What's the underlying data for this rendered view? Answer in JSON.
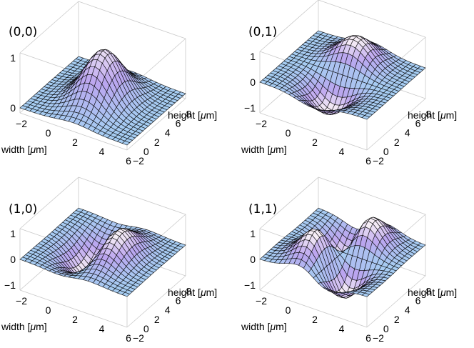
{
  "chart_data": [
    {
      "type": "surface3d",
      "mode": [
        0,
        0
      ],
      "title": "(0,0)",
      "xlabel_prefix": "width [",
      "xlabel_unit": "μ",
      "xlabel_suffix": "m]",
      "ylabel_prefix": "height [",
      "ylabel_unit": "μ",
      "ylabel_suffix": "m]",
      "x_ticks": [
        "−2",
        "0",
        "2",
        "4",
        "6"
      ],
      "y_ticks": [
        "−2",
        "0",
        "2",
        "4",
        "6",
        "8"
      ],
      "z_ticks": [
        "0",
        "1"
      ],
      "x_tick_values": [
        -2,
        0,
        2,
        4,
        6
      ],
      "y_tick_values": [
        -2,
        0,
        2,
        4,
        6,
        8
      ],
      "z_tick_values": [
        0,
        1
      ],
      "xlim": [
        -2,
        6
      ],
      "ylim": [
        -2,
        9
      ],
      "zlim": [
        -0.1,
        1.1
      ],
      "center": [
        2,
        3.5
      ],
      "width": [
        1.2,
        2.4
      ]
    },
    {
      "type": "surface3d",
      "mode": [
        0,
        1
      ],
      "title": "(0,1)",
      "xlabel_prefix": "width [",
      "xlabel_unit": "μ",
      "xlabel_suffix": "m]",
      "ylabel_prefix": "height [",
      "ylabel_unit": "μ",
      "ylabel_suffix": "m]",
      "x_ticks": [
        "−2",
        "0",
        "2",
        "4",
        "6"
      ],
      "y_ticks": [
        "−2",
        "0",
        "2",
        "4",
        "6",
        "8"
      ],
      "z_ticks": [
        "−1",
        "0",
        "1"
      ],
      "x_tick_values": [
        -2,
        0,
        2,
        4,
        6
      ],
      "y_tick_values": [
        -2,
        0,
        2,
        4,
        6,
        8
      ],
      "z_tick_values": [
        -1,
        0,
        1
      ],
      "xlim": [
        -2,
        6
      ],
      "ylim": [
        -2,
        9
      ],
      "zlim": [
        -1.2,
        1.2
      ],
      "center": [
        2,
        3.5
      ],
      "width": [
        1.2,
        2.4
      ]
    },
    {
      "type": "surface3d",
      "mode": [
        1,
        0
      ],
      "title": "(1,0)",
      "xlabel_prefix": "width [",
      "xlabel_unit": "μ",
      "xlabel_suffix": "m]",
      "ylabel_prefix": "height [",
      "ylabel_unit": "μ",
      "ylabel_suffix": "m]",
      "x_ticks": [
        "−2",
        "0",
        "2",
        "4",
        "6"
      ],
      "y_ticks": [
        "−2",
        "0",
        "2",
        "4",
        "6",
        "8"
      ],
      "z_ticks": [
        "−1",
        "0",
        "1"
      ],
      "x_tick_values": [
        -2,
        0,
        2,
        4,
        6
      ],
      "y_tick_values": [
        -2,
        0,
        2,
        4,
        6,
        8
      ],
      "z_tick_values": [
        -1,
        0,
        1
      ],
      "xlim": [
        -2,
        6
      ],
      "ylim": [
        -2,
        9
      ],
      "zlim": [
        -1.2,
        1.2
      ],
      "center": [
        2,
        3.5
      ],
      "width": [
        1.2,
        2.4
      ]
    },
    {
      "type": "surface3d",
      "mode": [
        1,
        1
      ],
      "title": "(1,1)",
      "xlabel_prefix": "width [",
      "xlabel_unit": "μ",
      "xlabel_suffix": "m]",
      "ylabel_prefix": "height [",
      "ylabel_unit": "μ",
      "ylabel_suffix": "m]",
      "x_ticks": [
        "−2",
        "0",
        "2",
        "4",
        "6"
      ],
      "y_ticks": [
        "−2",
        "0",
        "2",
        "4",
        "6",
        "8"
      ],
      "z_ticks": [
        "−1",
        "0",
        "1"
      ],
      "x_tick_values": [
        -2,
        0,
        2,
        4,
        6
      ],
      "y_tick_values": [
        -2,
        0,
        2,
        4,
        6,
        8
      ],
      "z_tick_values": [
        -1,
        0,
        1
      ],
      "xlim": [
        -2,
        6
      ],
      "ylim": [
        -2,
        9
      ],
      "zlim": [
        -1.2,
        1.2
      ],
      "center": [
        2,
        3.5
      ],
      "width": [
        1.2,
        2.4
      ]
    }
  ],
  "colors": {
    "low": "#a6cdf2",
    "mid": "#bba4ef",
    "high": "#f6eef6",
    "mesh": "#000000",
    "box": "#c9c9c9"
  }
}
